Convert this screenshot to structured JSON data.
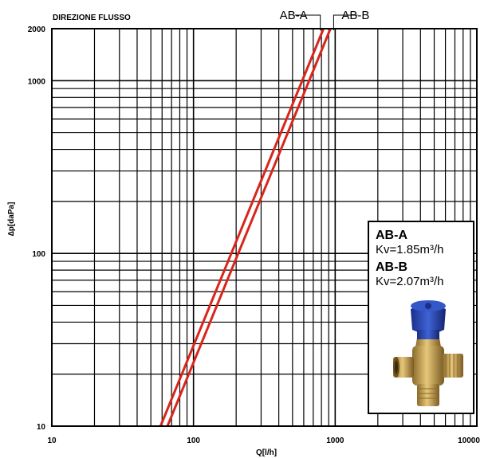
{
  "chart_data": {
    "type": "line",
    "title": "DIREZIONE FLUSSO",
    "xlabel": "Q[l/h]",
    "ylabel": "∆p[daPa]",
    "xscale": "log",
    "yscale": "log",
    "xlim": [
      10,
      10000
    ],
    "ylim": [
      10,
      2000
    ],
    "x_tick_labels": [
      "10",
      "100",
      "1000",
      "10000"
    ],
    "y_tick_labels": [
      "10",
      "100",
      "1000",
      "2000"
    ],
    "grid": true,
    "series": [
      {
        "name": "AB-A",
        "color": "#d9261c",
        "kv": 1.85,
        "x": [
          58.5,
          185,
          585,
          827
        ],
        "y": [
          10,
          100,
          1000,
          2000
        ]
      },
      {
        "name": "AB-B",
        "color": "#d9261c",
        "kv": 2.07,
        "x": [
          65.5,
          207,
          655,
          926
        ],
        "y": [
          10,
          100,
          1000,
          2000
        ]
      }
    ],
    "legend": {
      "entries": [
        {
          "name": "AB-A",
          "value": "Kv=1.85m³/h"
        },
        {
          "name": "AB-B",
          "value": "Kv=2.07m³/h"
        }
      ]
    }
  }
}
